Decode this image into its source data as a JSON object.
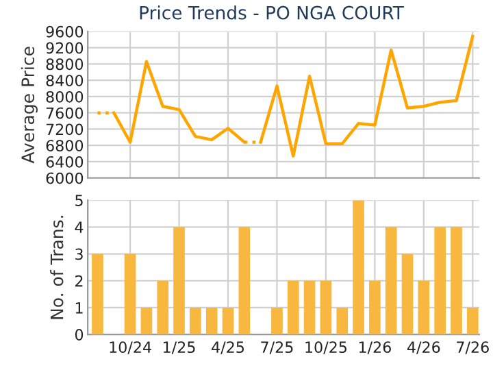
{
  "chart_data": [
    {
      "type": "line",
      "title": "Price Trends - PO NGA COURT",
      "ylabel": "Average Price",
      "categories": [
        null,
        null,
        null,
        null,
        null,
        null,
        null,
        null,
        null,
        null,
        null,
        null,
        null,
        null,
        null,
        null,
        null,
        null,
        null,
        null,
        null,
        null,
        null,
        null
      ],
      "series": [
        {
          "color": "#ffa500",
          "line_style": "dotted",
          "values": [
            7600,
            7600,
            null,
            null,
            null,
            null,
            null,
            null,
            null,
            null,
            null,
            null,
            null,
            null,
            null,
            null,
            null,
            null,
            null,
            null,
            null,
            null,
            null,
            null
          ]
        },
        {
          "color": "#ffa500",
          "line_style": "solid",
          "values": [
            null,
            7600,
            6880,
            8860,
            7760,
            7680,
            7020,
            6940,
            7220,
            6880,
            null,
            null,
            null,
            null,
            null,
            null,
            null,
            null,
            null,
            null,
            null,
            null,
            null,
            null
          ]
        },
        {
          "color": "#ffa500",
          "line_style": "dotted",
          "values": [
            null,
            null,
            null,
            null,
            null,
            null,
            null,
            null,
            null,
            6880,
            6880,
            null,
            null,
            null,
            null,
            null,
            null,
            null,
            null,
            null,
            null,
            null,
            null,
            null
          ]
        },
        {
          "color": "#ffa500",
          "line_style": "solid",
          "values": [
            null,
            null,
            null,
            null,
            null,
            null,
            null,
            null,
            null,
            null,
            6880,
            8260,
            6540,
            8500,
            6840,
            6840,
            7340,
            7300,
            9140,
            7720,
            7760,
            7860,
            7900,
            9480
          ]
        }
      ],
      "ylim": [
        6000,
        9600
      ],
      "yticks": [
        6000,
        6400,
        6800,
        7200,
        7600,
        8000,
        8400,
        8800,
        9200,
        9600
      ],
      "grid": true,
      "tick_labels": "y",
      "marker": "none"
    },
    {
      "type": "bar",
      "ylabel": "No. of Trans.",
      "categories": [
        null,
        null,
        "10/24",
        null,
        null,
        "1/25",
        null,
        null,
        "4/25",
        null,
        null,
        "7/25",
        null,
        null,
        "10/25",
        null,
        null,
        "1/26",
        null,
        null,
        "4/26",
        null,
        null,
        "7/26"
      ],
      "values": [
        3,
        0,
        3,
        1,
        2,
        4,
        1,
        1,
        1,
        4,
        0,
        1,
        2,
        2,
        2,
        1,
        5,
        2,
        4,
        3,
        2,
        4,
        4,
        1
      ],
      "color": "#f8b840",
      "ylim": [
        0,
        5
      ],
      "yticks": [
        0,
        1,
        2,
        3,
        4,
        5
      ],
      "grid": true
    }
  ]
}
